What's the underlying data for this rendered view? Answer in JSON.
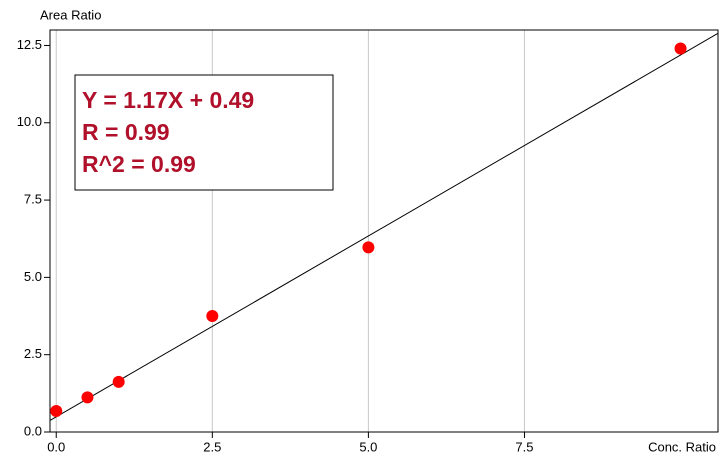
{
  "chart_data": {
    "type": "scatter",
    "y_label": "Area Ratio",
    "x_label": "Conc. Ratio",
    "annotations": [
      "Y = 1.17X + 0.49",
      "R = 0.99",
      "R^2 = 0.99"
    ],
    "series": [
      {
        "x": [
          0,
          0.5,
          1,
          2.5,
          5,
          10
        ],
        "values": [
          0.68,
          1.12,
          1.62,
          3.75,
          5.97,
          12.4
        ],
        "color": "#ff0000"
      }
    ],
    "fit": {
      "slope": 1.17,
      "intercept": 0.49,
      "color": "#000000"
    },
    "xlim": [
      -0.1,
      10.6
    ],
    "ylim": [
      0,
      13
    ],
    "xticks": [
      {
        "value": 0,
        "label": "0.0"
      },
      2.5,
      {
        "value": 5,
        "label": "5.0"
      },
      7.5
    ],
    "yticks": [
      {
        "value": 0,
        "label": "0.0"
      },
      2.5,
      {
        "value": 5,
        "label": "5.0"
      },
      7.5,
      {
        "value": 10,
        "label": "10.0"
      },
      12.5
    ],
    "grid": "x",
    "annotation_color": "#b0102a"
  }
}
